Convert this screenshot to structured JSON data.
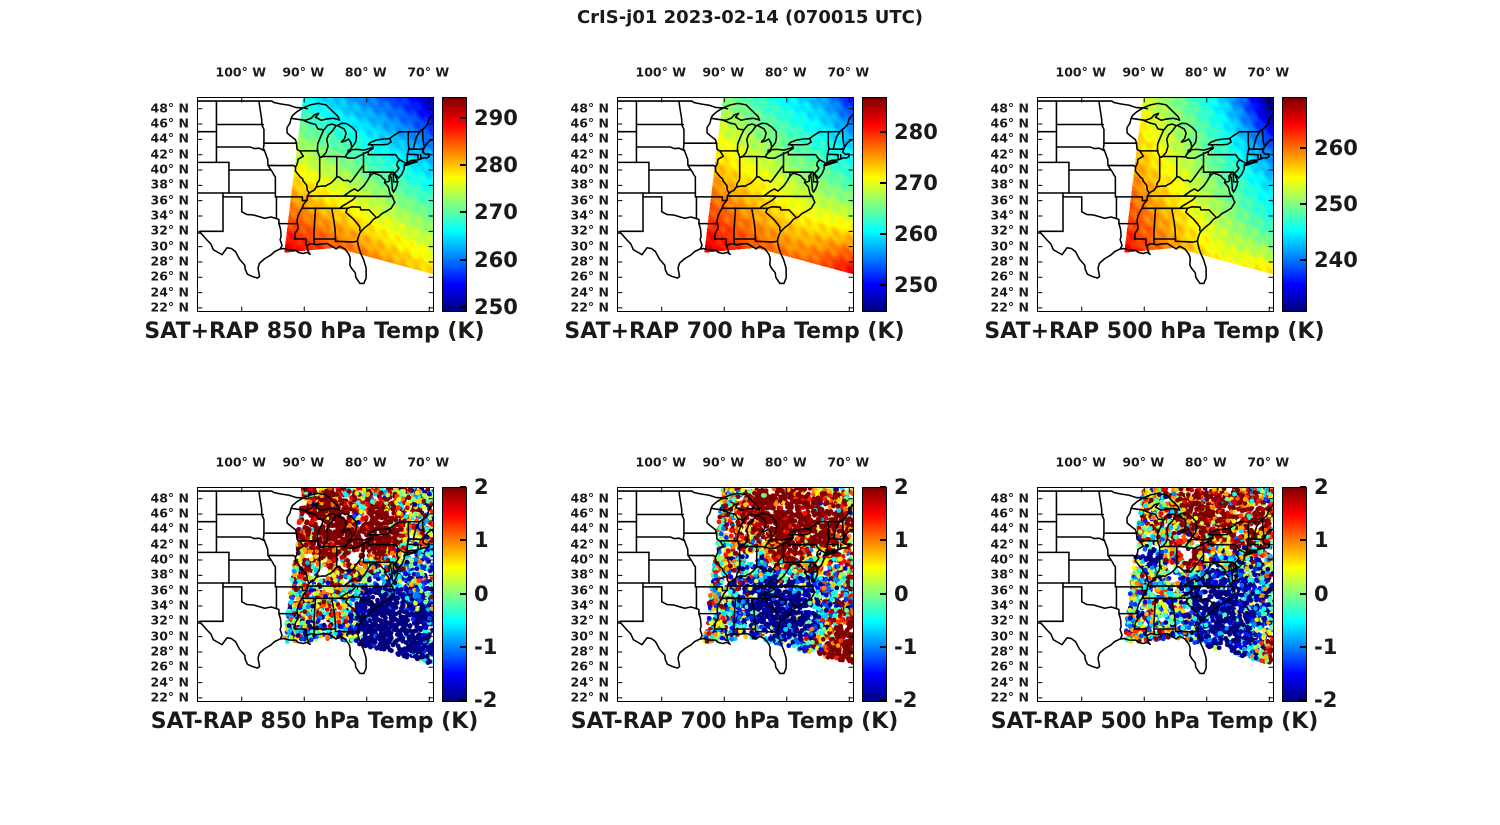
{
  "figure": {
    "title": "CrIS-j01 2023-02-14 (070015 UTC)",
    "background": "#ffffff",
    "text_color": "#1a1a1a",
    "colormap": "jet"
  },
  "map": {
    "lon_range": [
      -107,
      -69.4
    ],
    "lat_range": [
      21.6,
      49.4
    ],
    "x_ticks": [
      {
        "lon": -100,
        "label": "100° W"
      },
      {
        "lon": -90,
        "label": "90° W"
      },
      {
        "lon": -80,
        "label": "80° W"
      },
      {
        "lon": -70,
        "label": "70° W"
      }
    ],
    "y_ticks": [
      {
        "lat": 48,
        "label": "48° N"
      },
      {
        "lat": 46,
        "label": "46° N"
      },
      {
        "lat": 44,
        "label": "44° N"
      },
      {
        "lat": 42,
        "label": "42° N"
      },
      {
        "lat": 40,
        "label": "40° N"
      },
      {
        "lat": 38,
        "label": "38° N"
      },
      {
        "lat": 36,
        "label": "36° N"
      },
      {
        "lat": 34,
        "label": "34° N"
      },
      {
        "lat": 32,
        "label": "32° N"
      },
      {
        "lat": 30,
        "label": "30° N"
      },
      {
        "lat": 28,
        "label": "28° N"
      },
      {
        "lat": 26,
        "label": "26° N"
      },
      {
        "lat": 24,
        "label": "24° N"
      },
      {
        "lat": 22,
        "label": "22° N"
      }
    ],
    "swath_outline": [
      [
        -90.2,
        49.4
      ],
      [
        -69.4,
        49.4
      ],
      [
        -69.4,
        26.4
      ],
      [
        -85.0,
        29.85
      ],
      [
        -93.2,
        29.2
      ]
    ]
  },
  "chart_data": [
    {
      "id": "sat_plus_rap_850",
      "type": "map-heatmap",
      "title": "SAT+RAP 850 hPa Temp (K)",
      "quantity": "temperature",
      "level_hPa": 850,
      "units": "K",
      "colormap": "jet",
      "colorbar": {
        "min": 249.3,
        "max": 294.5,
        "ticks": [
          290,
          280,
          270,
          260,
          250
        ]
      },
      "field": {
        "base": 266.6,
        "lat_coef": -1.095,
        "lon_coef": -0.6,
        "noise_amp": 0.9,
        "blobs": [
          {
            "lon": -66.5,
            "lat": 50.5,
            "sigma": 3.5,
            "amp": -5
          }
        ]
      },
      "pattern_summary": "~290 K warm air over Louisiana/Mississippi, ~280 K mid-South, cooling northeastward to ~255 K over New England"
    },
    {
      "id": "sat_plus_rap_700",
      "type": "map-heatmap",
      "title": "SAT+RAP 700 hPa Temp (K)",
      "quantity": "temperature",
      "level_hPa": 700,
      "units": "K",
      "colormap": "jet",
      "colorbar": {
        "min": 245.1,
        "max": 286.8,
        "ticks": [
          280,
          270,
          260,
          250
        ]
      },
      "field": {
        "base": 253.1,
        "lat_coef": -0.76,
        "lon_coef": -0.562,
        "noise_amp": 0.85,
        "blobs": [
          {
            "lon": -67,
            "lat": 24,
            "sigma": 6,
            "amp": 12
          },
          {
            "lon": -66.5,
            "lat": 50.5,
            "sigma": 3.5,
            "amp": -6
          }
        ]
      },
      "pattern_summary": "~278 K orange over the Gulf states, ~285 K red offshore southeast corner, ~255 K cyan over northern New England"
    },
    {
      "id": "sat_plus_rap_500",
      "type": "map-heatmap",
      "title": "SAT+RAP 500 hPa Temp (K)",
      "quantity": "temperature",
      "level_hPa": 500,
      "units": "K",
      "colormap": "jet",
      "colorbar": {
        "min": 231,
        "max": 269.2,
        "ticks": [
          260,
          250,
          240
        ]
      },
      "field": {
        "base": 212.5,
        "lat_coef": -0.45,
        "lon_coef": -0.7,
        "noise_amp": 0.85,
        "blobs": [
          {
            "lon": -66,
            "lat": 51,
            "sigma": 5,
            "amp": -13
          },
          {
            "lon": -70,
            "lat": 24,
            "sigma": 4,
            "amp": 8
          }
        ]
      },
      "pattern_summary": "~258 K orange along the Gulf coast, ~252 K yellow-green mid-latitudes, deep blue ~233 K far northeast corner"
    },
    {
      "id": "sat_minus_rap_850",
      "type": "map-scatter",
      "title": "SAT-RAP 850 hPa Temp (K)",
      "quantity": "temperature difference",
      "level_hPa": 850,
      "units": "K",
      "colormap": "jet",
      "colorbar": {
        "min": -2,
        "max": 2,
        "ticks": [
          2,
          1,
          0,
          -1,
          -2
        ]
      },
      "scatter": {
        "seed": 850,
        "count": 3200,
        "dot_radius": 2.4,
        "noise_sigma": 1.35,
        "blobs": [
          {
            "lon": -86.5,
            "lat": 45.0,
            "sigma": 3.8,
            "amp": 3.6
          },
          {
            "lon": -80.5,
            "lat": 42.8,
            "sigma": 3.0,
            "amp": 3.2
          },
          {
            "lon": -77.5,
            "lat": 44.5,
            "sigma": 2.5,
            "amp": 3.0
          },
          {
            "lon": -81.2,
            "lat": 45.3,
            "sigma": 1.2,
            "amp": -4.5
          },
          {
            "lon": -75.3,
            "lat": 30.3,
            "sigma": 5.0,
            "amp": -3.8
          },
          {
            "lon": -79.0,
            "lat": 33.5,
            "sigma": 2.5,
            "amp": -2.0
          },
          {
            "lon": -84.5,
            "lat": 33.5,
            "sigma": 1.8,
            "amp": 1.5
          }
        ],
        "gaps": [
          {
            "lon": -82.0,
            "lat": 40.3,
            "r": 1.0
          },
          {
            "lon": -86.9,
            "lat": 38.2,
            "r": 0.9
          },
          {
            "lon": -84.5,
            "lat": 39.6,
            "r": 0.6
          }
        ]
      },
      "pattern_summary": "SAT warmer than RAP by >2 K over the upper Great Lakes and New York; colder by >2 K along the Southeast coast and offshore Atlantic"
    },
    {
      "id": "sat_minus_rap_700",
      "type": "map-scatter",
      "title": "SAT-RAP 700 hPa Temp (K)",
      "quantity": "temperature difference",
      "level_hPa": 700,
      "units": "K",
      "colormap": "jet",
      "colorbar": {
        "min": -2,
        "max": 2,
        "ticks": [
          2,
          1,
          0,
          -1,
          -2
        ]
      },
      "scatter": {
        "seed": 700,
        "count": 3200,
        "dot_radius": 2.4,
        "noise_sigma": 1.3,
        "blobs": [
          {
            "lon": -82.0,
            "lat": 45.5,
            "sigma": 4.5,
            "amp": 3.2
          },
          {
            "lon": -73.0,
            "lat": 44.5,
            "sigma": 3.0,
            "amp": 2.6
          },
          {
            "lon": -85.0,
            "lat": 41.3,
            "sigma": 1.5,
            "amp": -1.5
          },
          {
            "lon": -79.5,
            "lat": 40.8,
            "sigma": 1.8,
            "amp": 2.5
          },
          {
            "lon": -79.5,
            "lat": 33.0,
            "sigma": 4.2,
            "amp": -3.2
          },
          {
            "lon": -84.0,
            "lat": 35.0,
            "sigma": 2.5,
            "amp": -2.0
          },
          {
            "lon": -70.5,
            "lat": 26.0,
            "sigma": 3.5,
            "amp": 3.8
          },
          {
            "lon": -71.5,
            "lat": 30.5,
            "sigma": 2.0,
            "amp": 2.2
          }
        ],
        "gaps": [
          {
            "lon": -85.5,
            "lat": 40.3,
            "r": 0.8
          }
        ]
      },
      "pattern_summary": "SAT warmer >2 K over Great Lakes/Northeast and far southeast corner; colder >2 K over the Southeast interior and coastal Atlantic"
    },
    {
      "id": "sat_minus_rap_500",
      "type": "map-scatter",
      "title": "SAT-RAP 500 hPa Temp (K)",
      "quantity": "temperature difference",
      "level_hPa": 500,
      "units": "K",
      "colormap": "jet",
      "colorbar": {
        "min": -2,
        "max": 2,
        "ticks": [
          2,
          1,
          0,
          -1,
          -2
        ]
      },
      "scatter": {
        "seed": 500,
        "count": 3200,
        "dot_radius": 2.4,
        "noise_sigma": 1.35,
        "blobs": [
          {
            "lon": -80.0,
            "lat": 46.5,
            "sigma": 4.2,
            "amp": 2.8
          },
          {
            "lon": -71.5,
            "lat": 44.5,
            "sigma": 2.5,
            "amp": 2.2
          },
          {
            "lon": -82.4,
            "lat": 40.2,
            "sigma": 1.1,
            "amp": 3.0
          },
          {
            "lon": -88.8,
            "lat": 40.2,
            "sigma": 1.0,
            "amp": -3.5
          },
          {
            "lon": -76.5,
            "lat": 31.5,
            "sigma": 5.0,
            "amp": -3.0
          },
          {
            "lon": -80.5,
            "lat": 36.0,
            "sigma": 2.2,
            "amp": -2.0
          },
          {
            "lon": -68.8,
            "lat": 29.5,
            "sigma": 1.8,
            "amp": 2.4
          },
          {
            "lon": -69.5,
            "lat": 25.8,
            "sigma": 2.0,
            "amp": 2.0
          }
        ],
        "gaps": [
          {
            "lon": -83.2,
            "lat": 40.5,
            "r": 0.9
          },
          {
            "lon": -85.8,
            "lat": 39.0,
            "r": 0.7
          },
          {
            "lon": -87.6,
            "lat": 41.6,
            "r": 0.6
          }
        ]
      },
      "pattern_summary": "SAT warmer >2 K across the north; colder >2 K over the Southeast; mixed warm/cold streaks along the eastern swath edge"
    }
  ]
}
